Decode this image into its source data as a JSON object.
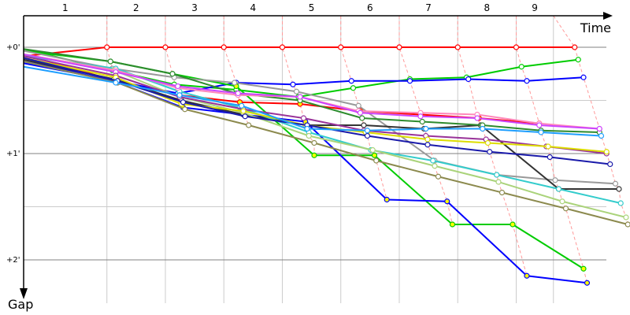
{
  "chart_data": {
    "type": "line",
    "xlabel": "Time",
    "ylabel": "Gap",
    "y_ticks": [
      {
        "value": 0,
        "label": "+0'"
      },
      {
        "value": 60,
        "label": "+1'"
      },
      {
        "value": 120,
        "label": "+2'"
      }
    ],
    "y_minor_grid": [
      30,
      90
    ],
    "ylim": [
      0,
      140
    ],
    "xlim": [
      0,
      345
    ],
    "grid": true,
    "lap_labels": [
      "1",
      "2",
      "3",
      "4",
      "5",
      "6",
      "7",
      "8",
      "9"
    ],
    "lap_grid_times": [
      47,
      80,
      113,
      146,
      179,
      212,
      245,
      278,
      299
    ],
    "colors": {
      "lap_line": "#ff9999",
      "grid": "#cccccc",
      "major_grid": "#808080"
    },
    "series": [
      {
        "color": "#ff0000",
        "marker": "#ffffff",
        "points": [
          [
            0,
            5
          ],
          [
            47,
            0
          ],
          [
            80,
            0
          ],
          [
            113,
            0
          ],
          [
            146,
            0
          ],
          [
            179,
            0
          ],
          [
            212,
            0
          ],
          [
            245,
            0
          ],
          [
            278,
            0
          ],
          [
            311,
            0
          ]
        ]
      },
      {
        "color": "#ff0000",
        "marker": "#ffff00",
        "points": [
          [
            0,
            4
          ],
          [
            52,
            19
          ],
          [
            88,
            27
          ],
          [
            122,
            31
          ],
          [
            156,
            32
          ],
          [
            190,
            36
          ],
          [
            224,
            38
          ],
          [
            257,
            40
          ],
          [
            291,
            43
          ]
        ]
      },
      {
        "color": "#00cc00",
        "marker": "#ffffff",
        "points": [
          [
            0,
            1
          ],
          [
            50,
            13
          ],
          [
            85,
            21
          ],
          [
            120,
            24
          ],
          [
            155,
            28
          ],
          [
            186,
            23
          ],
          [
            218,
            18
          ],
          [
            250,
            17
          ],
          [
            281,
            11
          ],
          [
            313,
            7
          ]
        ]
      },
      {
        "color": "#0000ff",
        "marker": "#ffffff",
        "points": [
          [
            0,
            9
          ],
          [
            52,
            19
          ],
          [
            87,
            26
          ],
          [
            120,
            20
          ],
          [
            152,
            21
          ],
          [
            185,
            19
          ],
          [
            218,
            19
          ],
          [
            251,
            18
          ],
          [
            284,
            19
          ],
          [
            316,
            17
          ]
        ]
      },
      {
        "color": "#00cc00",
        "marker": "#ffff00",
        "points": [
          [
            0,
            2
          ],
          [
            49,
            8
          ],
          [
            84,
            15
          ],
          [
            120,
            22
          ],
          [
            164,
            61
          ],
          [
            198,
            61
          ],
          [
            242,
            100
          ],
          [
            276,
            100
          ],
          [
            316,
            125
          ]
        ]
      },
      {
        "color": "#0000ff",
        "marker": "#ffff00",
        "points": [
          [
            0,
            7
          ],
          [
            53,
            20
          ],
          [
            90,
            34
          ],
          [
            124,
            38
          ],
          [
            159,
            42
          ],
          [
            205,
            86
          ],
          [
            239,
            87
          ],
          [
            284,
            129
          ],
          [
            318,
            133
          ]
        ]
      },
      {
        "color": "#999999",
        "marker": "#ffffff",
        "points": [
          [
            0,
            2
          ],
          [
            50,
            12
          ],
          [
            85,
            17
          ],
          [
            119,
            20
          ],
          [
            154,
            25
          ],
          [
            189,
            33
          ],
          [
            232,
            64
          ],
          [
            267,
            72
          ],
          [
            300,
            75
          ],
          [
            334,
            77
          ]
        ]
      },
      {
        "color": "#333333",
        "marker": "#ffffff",
        "points": [
          [
            0,
            7
          ],
          [
            51,
            18
          ],
          [
            89,
            30
          ],
          [
            124,
            38
          ],
          [
            160,
            44
          ],
          [
            192,
            44
          ],
          [
            226,
            46
          ],
          [
            258,
            44
          ],
          [
            302,
            80
          ],
          [
            336,
            80
          ]
        ]
      },
      {
        "color": "#33cccc",
        "marker": "#ffffff",
        "points": [
          [
            0,
            5
          ],
          [
            52,
            12
          ],
          [
            88,
            25
          ],
          [
            122,
            34
          ],
          [
            161,
            48
          ],
          [
            196,
            58
          ],
          [
            231,
            64
          ],
          [
            267,
            72
          ],
          [
            302,
            80
          ],
          [
            337,
            88
          ]
        ]
      },
      {
        "color": "#aad37a",
        "marker": "#ffffff",
        "points": [
          [
            0,
            4
          ],
          [
            51,
            13
          ],
          [
            88,
            28
          ],
          [
            124,
            37
          ],
          [
            161,
            50
          ],
          [
            197,
            58
          ],
          [
            232,
            67
          ],
          [
            268,
            76
          ],
          [
            304,
            87
          ],
          [
            340,
            96
          ]
        ]
      },
      {
        "color": "#8c8a4e",
        "marker": "#ffffff",
        "points": [
          [
            0,
            8
          ],
          [
            53,
            20
          ],
          [
            91,
            35
          ],
          [
            127,
            44
          ],
          [
            164,
            54
          ],
          [
            199,
            64
          ],
          [
            234,
            73
          ],
          [
            270,
            82
          ],
          [
            306,
            91
          ],
          [
            341,
            100
          ]
        ]
      },
      {
        "color": "#2e8b2e",
        "marker": "#ffffff",
        "points": [
          [
            0,
            1
          ],
          [
            49,
            8
          ],
          [
            84,
            15
          ],
          [
            120,
            26
          ],
          [
            156,
            30
          ],
          [
            191,
            40
          ],
          [
            225,
            42
          ],
          [
            259,
            44
          ],
          [
            292,
            47
          ],
          [
            325,
            48
          ]
        ]
      },
      {
        "color": "#ff88bb",
        "marker": "#ffffff",
        "points": [
          [
            0,
            4
          ],
          [
            52,
            13
          ],
          [
            87,
            23
          ],
          [
            121,
            27
          ],
          [
            156,
            28
          ],
          [
            189,
            36
          ],
          [
            224,
            37
          ],
          [
            256,
            38
          ],
          [
            291,
            43
          ],
          [
            325,
            46
          ]
        ]
      },
      {
        "color": "#cc44ff",
        "marker": "#ffffff",
        "points": [
          [
            0,
            4
          ],
          [
            52,
            14
          ],
          [
            87,
            22
          ],
          [
            121,
            26
          ],
          [
            156,
            28
          ],
          [
            190,
            37
          ],
          [
            224,
            39
          ],
          [
            256,
            40
          ],
          [
            291,
            44
          ],
          [
            325,
            46
          ]
        ]
      },
      {
        "color": "#993399",
        "marker": "#ffffff",
        "points": [
          [
            0,
            5
          ],
          [
            52,
            16
          ],
          [
            88,
            28
          ],
          [
            124,
            35
          ],
          [
            158,
            40
          ],
          [
            192,
            47
          ],
          [
            227,
            50
          ],
          [
            261,
            52
          ],
          [
            295,
            56
          ],
          [
            329,
            60
          ]
        ]
      },
      {
        "color": "#dddd00",
        "marker": "#ffffff",
        "points": [
          [
            0,
            6
          ],
          [
            52,
            17
          ],
          [
            89,
            32
          ],
          [
            124,
            36
          ],
          [
            159,
            44
          ],
          [
            193,
            48
          ],
          [
            228,
            52
          ],
          [
            262,
            54
          ],
          [
            296,
            56
          ],
          [
            329,
            59
          ]
        ]
      },
      {
        "color": "#1a1aaa",
        "marker": "#ffffff",
        "points": [
          [
            0,
            6
          ],
          [
            53,
            19
          ],
          [
            90,
            31
          ],
          [
            125,
            39
          ],
          [
            160,
            44
          ],
          [
            194,
            50
          ],
          [
            228,
            55
          ],
          [
            263,
            59
          ],
          [
            297,
            62
          ],
          [
            331,
            66
          ]
        ]
      },
      {
        "color": "#1e9eff",
        "marker": "#ffffff",
        "points": [
          [
            0,
            11
          ],
          [
            52,
            20
          ],
          [
            88,
            27
          ],
          [
            123,
            33
          ],
          [
            160,
            46
          ],
          [
            194,
            47
          ],
          [
            227,
            46
          ],
          [
            259,
            46
          ],
          [
            292,
            48
          ],
          [
            326,
            50
          ]
        ]
      }
    ]
  }
}
